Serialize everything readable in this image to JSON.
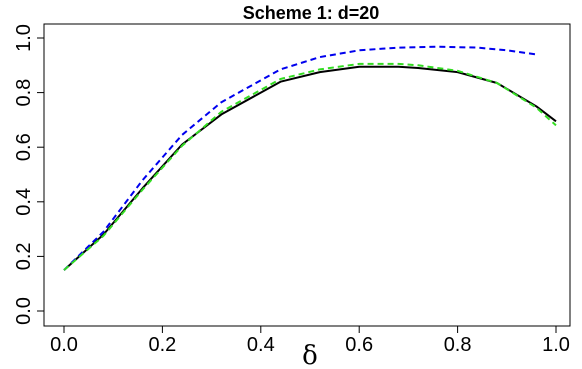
{
  "chart_data": {
    "type": "line",
    "title": "Scheme 1: d=20",
    "xlabel": "δ",
    "ylabel": "",
    "xlim": [
      0.0,
      1.0
    ],
    "ylim": [
      0.0,
      1.0
    ],
    "xticks": [
      "0.0",
      "0.2",
      "0.4",
      "0.6",
      "0.8",
      "1.0"
    ],
    "yticks": [
      "0.0",
      "0.2",
      "0.4",
      "0.6",
      "0.8",
      "1.0"
    ],
    "grid": false,
    "legend": "none",
    "series": [
      {
        "color": "#000000",
        "style": "solid",
        "x": [
          0.0,
          0.08,
          0.16,
          0.24,
          0.32,
          0.44,
          0.52,
          0.6,
          0.68,
          0.72,
          0.8,
          0.88,
          0.96,
          1.0
        ],
        "y": [
          0.15,
          0.28,
          0.45,
          0.61,
          0.72,
          0.84,
          0.875,
          0.895,
          0.895,
          0.89,
          0.875,
          0.835,
          0.75,
          0.695
        ]
      },
      {
        "color": "#0000ee",
        "style": "dashed",
        "x": [
          0.0,
          0.08,
          0.16,
          0.24,
          0.32,
          0.44,
          0.52,
          0.6,
          0.68,
          0.76,
          0.84,
          0.9,
          0.96
        ],
        "y": [
          0.15,
          0.29,
          0.48,
          0.645,
          0.765,
          0.885,
          0.93,
          0.955,
          0.965,
          0.968,
          0.965,
          0.955,
          0.94
        ]
      },
      {
        "color": "#33dd22",
        "style": "dashed",
        "x": [
          0.0,
          0.08,
          0.16,
          0.24,
          0.32,
          0.44,
          0.52,
          0.6,
          0.68,
          0.72,
          0.8,
          0.88,
          0.96,
          1.0
        ],
        "y": [
          0.15,
          0.275,
          0.445,
          0.605,
          0.73,
          0.85,
          0.885,
          0.905,
          0.905,
          0.9,
          0.88,
          0.835,
          0.745,
          0.68
        ]
      }
    ]
  }
}
